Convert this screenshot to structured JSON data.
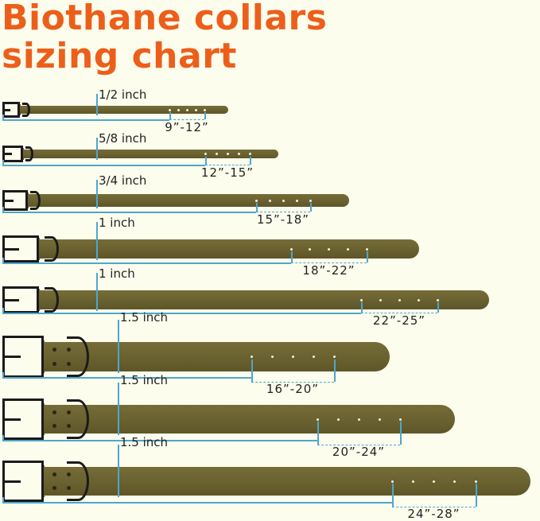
{
  "title": {
    "line1": "Biothane collars",
    "line2": "sizing chart"
  },
  "colors": {
    "title": "#ec5f1a",
    "strap": "#6a6230",
    "measure_line": "#4ea6cc",
    "hardware": "#1b1b1b",
    "background": "#fdfdee"
  },
  "collars": [
    {
      "width": "1/2 inch",
      "size_range": "9”-12”"
    },
    {
      "width": "5/8 inch",
      "size_range": "12”-15”"
    },
    {
      "width": "3/4 inch",
      "size_range": "15”-18”"
    },
    {
      "width": "1 inch",
      "size_range": "18”-22”"
    },
    {
      "width": "1 inch",
      "size_range": "22”-25”"
    },
    {
      "width": "1.5 inch",
      "size_range": "16”-20”"
    },
    {
      "width": "1.5 inch",
      "size_range": "20”-24”"
    },
    {
      "width": "1.5 inch",
      "size_range": "24”-28”"
    }
  ]
}
